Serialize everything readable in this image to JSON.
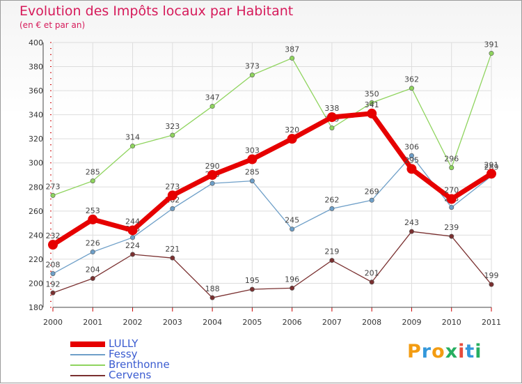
{
  "title": "Evolution des Impôts locaux par Habitant",
  "subtitle": "(en € et par an)",
  "brand": {
    "text": "Proxiti",
    "letters": [
      "P",
      "r",
      "o",
      "x",
      "i",
      "t",
      "i"
    ],
    "colors": [
      "#f39c12",
      "#3498db",
      "#f39c12",
      "#27ae60",
      "#e74c3c",
      "#3498db",
      "#27ae60"
    ]
  },
  "chart_data": {
    "type": "line",
    "title": "Evolution des Impôts locaux par Habitant",
    "subtitle": "(en € et par an)",
    "xlabel": "",
    "ylabel": "",
    "categories": [
      "2000",
      "2001",
      "2002",
      "2003",
      "2004",
      "2005",
      "2006",
      "2007",
      "2008",
      "2009",
      "2010",
      "2011"
    ],
    "ylim": [
      180,
      400
    ],
    "yticks": [
      180,
      200,
      220,
      240,
      260,
      280,
      300,
      320,
      340,
      360,
      380,
      400
    ],
    "grid": true,
    "legend_position": "bottom-left",
    "series": [
      {
        "name": "LULLY",
        "color": "#e60000",
        "emphasis": true,
        "values": [
          232,
          253,
          244,
          273,
          290,
          303,
          320,
          338,
          341,
          295,
          270,
          291
        ]
      },
      {
        "name": "Fessy",
        "color": "#6e9fc8",
        "emphasis": false,
        "values": [
          208,
          226,
          238,
          262,
          283,
          285,
          245,
          262,
          269,
          306,
          263,
          289
        ]
      },
      {
        "name": "Brenthonne",
        "color": "#8fd45e",
        "emphasis": false,
        "values": [
          273,
          285,
          314,
          323,
          347,
          373,
          387,
          329,
          350,
          362,
          296,
          391
        ]
      },
      {
        "name": "Cervens",
        "color": "#7a3030",
        "emphasis": false,
        "values": [
          192,
          204,
          224,
          221,
          188,
          195,
          196,
          219,
          201,
          243,
          239,
          199
        ]
      }
    ]
  }
}
